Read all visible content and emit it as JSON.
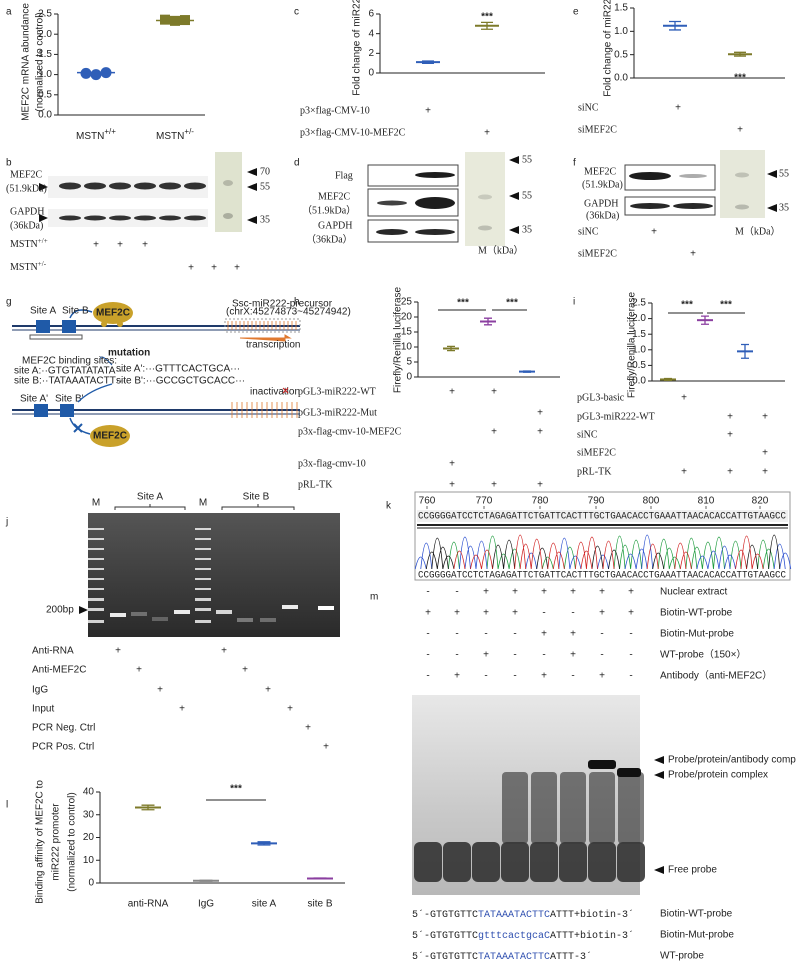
{
  "panel_letters": [
    "a",
    "b",
    "c",
    "d",
    "e",
    "f",
    "g",
    "h",
    "i",
    "j",
    "k",
    "l",
    "m"
  ],
  "chart_data": [
    {
      "type": "dot",
      "y_label": [
        "MEF2C mRNA abundance",
        "(normalized to control)"
      ],
      "categories": [
        "MSTN",
        "MSTN"
      ],
      "category_superscripts": [
        "+/+",
        "+/-"
      ],
      "markers": [
        "circle",
        "square"
      ],
      "colors": [
        "#2f5eb8",
        "#7d7a2a"
      ],
      "points": [
        [
          1.03,
          1.0,
          1.05
        ],
        [
          2.36,
          2.33,
          2.35
        ]
      ],
      "means": [
        1.05,
        2.34
      ],
      "ylim": [
        0,
        2.5
      ],
      "yticks": [
        {
          "value": 0,
          "label": "0.0"
        },
        0.5,
        {
          "value": 1,
          "label": "1.0"
        },
        1.5,
        {
          "value": 2,
          "label": "2.0"
        },
        2.5
      ]
    },
    {
      "type": "errorbar",
      "y_label": [
        "Fold change of miR222"
      ],
      "colors": [
        "#2f5eb8",
        "#7d7a2a"
      ],
      "values": [
        1.1,
        4.8
      ],
      "errors": [
        0.12,
        0.35
      ],
      "ylim": [
        0,
        6
      ],
      "yticks": [
        0,
        2,
        4,
        6
      ],
      "annotations": [
        "***"
      ],
      "conditions": [
        {
          "label": "p3×flag-CMV-10",
          "marks": [
            "+",
            null
          ]
        },
        {
          "label": "p3×flag-CMV-10-MEF2C",
          "marks": [
            null,
            "+"
          ]
        }
      ]
    },
    {
      "type": "errorbar",
      "y_label": [
        "Fold change of miR222"
      ],
      "colors": [
        "#2f5eb8",
        "#7d7a2a"
      ],
      "values": [
        1.12,
        0.51
      ],
      "errors": [
        0.09,
        0.04
      ],
      "ylim": [
        0,
        1.5
      ],
      "yticks": [
        {
          "value": 0,
          "label": "0.0"
        },
        0.5,
        {
          "value": 1,
          "label": "1.0"
        },
        1.5
      ],
      "annotations": [
        "***"
      ],
      "conditions": [
        {
          "label": "siNC",
          "marks": [
            "+",
            null
          ]
        },
        {
          "label": "siMEF2C",
          "marks": [
            null,
            "+"
          ]
        }
      ]
    },
    {
      "type": "errorbar",
      "y_label": [
        "Firefly/Renilla luciferase"
      ],
      "colors": [
        "#7d7a2a",
        "#8b3fa0",
        "#2f5eb8"
      ],
      "values": [
        9.5,
        18.5,
        1.8
      ],
      "errors": [
        0.7,
        1.1,
        0.2
      ],
      "ylim": [
        0,
        25
      ],
      "yticks": [
        0,
        5,
        10,
        15,
        20,
        25
      ],
      "annotations": [
        "***",
        "***"
      ],
      "conditions": [
        {
          "label": "pGL3-miR222-WT",
          "marks": [
            "+",
            "+",
            null
          ]
        },
        {
          "label": "pGL3-miR222-Mut",
          "marks": [
            null,
            null,
            "+"
          ]
        },
        {
          "label": "p3x-flag-cmv-10-MEF2C",
          "marks": [
            null,
            "+",
            "+"
          ]
        },
        {
          "label": "p3x-flag-cmv-10",
          "marks": [
            "+",
            null,
            null
          ]
        },
        {
          "label": "pRL-TK",
          "marks": [
            "+",
            "+",
            "+"
          ]
        }
      ]
    },
    {
      "type": "errorbar",
      "y_label": [
        "Firefly/Renilla luciferase"
      ],
      "colors": [
        "#7d7a2a",
        "#8b3fa0",
        "#2f5eb8"
      ],
      "values": [
        0.05,
        1.95,
        0.95
      ],
      "errors": [
        0.03,
        0.13,
        0.22
      ],
      "ylim": [
        0,
        2.5
      ],
      "yticks": [
        {
          "value": 0,
          "label": "0.0"
        },
        0.5,
        {
          "value": 1,
          "label": "1.0"
        },
        1.5,
        {
          "value": 2,
          "label": "2.0"
        },
        2.5
      ],
      "annotations": [
        "***",
        "***"
      ],
      "conditions": [
        {
          "label": "pGL3-basic",
          "marks": [
            "+",
            null,
            null
          ]
        },
        {
          "label": "pGL3-miR222-WT",
          "marks": [
            null,
            "+",
            "+"
          ]
        },
        {
          "label": "siNC",
          "marks": [
            null,
            "+",
            null
          ]
        },
        {
          "label": "siMEF2C",
          "marks": [
            null,
            null,
            "+"
          ]
        },
        {
          "label": "pRL-TK",
          "marks": [
            "+",
            "+",
            "+"
          ]
        }
      ]
    },
    {
      "type": "errorbar",
      "y_label": [
        "Binding affinity of MEF2C to",
        "miR222 promoter",
        "(normalized to control)"
      ],
      "categories": [
        "anti-RNA",
        "IgG",
        "site A",
        "site B"
      ],
      "colors": [
        "#7d7a2a",
        "#888888",
        "#2f5eb8",
        "#8b3fa0"
      ],
      "values": [
        33.2,
        1.0,
        17.4,
        2.0
      ],
      "errors": [
        1.0,
        0.2,
        0.7,
        0.2
      ],
      "ylim": [
        0,
        40
      ],
      "yticks": [
        0,
        10,
        20,
        30,
        40
      ],
      "annotations": [
        "***"
      ]
    }
  ],
  "blot_b": {
    "rows": [
      {
        "name": "MEF2C",
        "size": "(51.9kDa)"
      },
      {
        "name": "GAPDH",
        "size": "(36kDa)"
      }
    ],
    "markers": [
      70,
      55,
      35
    ],
    "conditions": [
      {
        "label": "MSTN",
        "sup": "+/+",
        "marks": [
          "+",
          "+",
          "+"
        ]
      },
      {
        "label": "MSTN",
        "sup": "+/-",
        "marks": [
          "+",
          "+",
          "+"
        ]
      }
    ]
  },
  "blot_d": {
    "rows": [
      {
        "name": "Flag"
      },
      {
        "name": "MEF2C",
        "size": "（51.9kDa）"
      },
      {
        "name": "GAPDH",
        "size": "（36kDa）"
      }
    ],
    "markers": [
      55,
      55,
      35
    ],
    "marker_unit": "M（kDa）"
  },
  "blot_f": {
    "rows": [
      {
        "name": "MEF2C",
        "size": "(51.9kDa)"
      },
      {
        "name": "GAPDH",
        "size": "(36kDa)"
      }
    ],
    "markers": [
      55,
      35
    ],
    "marker_unit": "M（kDa）",
    "conditions": [
      {
        "label": "siNC",
        "marks": [
          "+",
          null
        ]
      },
      {
        "label": "siMEF2C",
        "marks": [
          null,
          "+"
        ]
      }
    ]
  },
  "diagram_g": {
    "protein": "MEF2C",
    "site_a": "Site A",
    "site_b": "Site B",
    "precursor": "Ssc-miR222-precursor",
    "coords": "(chrX:45274873~45274942)",
    "transcription": "transcription",
    "mutation": "mutation",
    "binding_title": "MEF2C binding sites:",
    "site_a_seq": "site A:··GTGTATATATA···",
    "site_b_seq": "site B:··TATAAATACTT···",
    "site_a_mut": "site A':···GTTTCACTGCA···",
    "site_b_mut": "site B':···GCCGCTGCACC···",
    "inactivation": "inactivation",
    "site_a_prime": "Site A'",
    "site_b_prime": "Site B'",
    "protein_2": "MEF2C"
  },
  "gel_j": {
    "marker": "M",
    "site_a": "Site A",
    "marker_2": "M",
    "site_b": "Site B",
    "size": "200bp",
    "conditions": [
      {
        "label": "Anti-RNA",
        "marks": [
          "+",
          null,
          null,
          null,
          "+",
          null,
          null,
          null,
          null,
          null
        ]
      },
      {
        "label": "Anti-MEF2C",
        "marks": [
          null,
          "+",
          null,
          null,
          null,
          "+",
          null,
          null,
          null,
          null
        ]
      },
      {
        "label": "IgG",
        "marks": [
          null,
          null,
          "+",
          null,
          null,
          null,
          "+",
          null,
          null,
          null
        ]
      },
      {
        "label": "Input",
        "marks": [
          null,
          null,
          null,
          "+",
          null,
          null,
          null,
          "+",
          null,
          null
        ]
      },
      {
        "label": "PCR Neg. Ctrl",
        "marks": [
          null,
          null,
          null,
          null,
          null,
          null,
          null,
          null,
          "+",
          null
        ]
      },
      {
        "label": "PCR Pos. Ctrl",
        "marks": [
          null,
          null,
          null,
          null,
          null,
          null,
          null,
          null,
          null,
          "+"
        ]
      }
    ]
  },
  "sequencing_k": {
    "positions": [
      760,
      770,
      780,
      790,
      800,
      810,
      820
    ],
    "reference": "CCGGGGATCCTCTAGAGATTCTGATTCACTTTGCTGAACACCTGAAATTAACACACCATTGTAAGCC",
    "called": "CCGGGGATCCTCTAGAGATTCTGATTCACTTTGCTGAACACCTGAAATTAACACACCATTGTAAGCC"
  },
  "emsa_m": {
    "conditions": [
      {
        "label": "Nuclear extract",
        "marks": [
          "-",
          "-",
          "+",
          "+",
          "+",
          "+",
          "+",
          "+"
        ]
      },
      {
        "label": "Biotin-WT-probe",
        "marks": [
          "+",
          "+",
          "+",
          "+",
          "-",
          "-",
          "+",
          "+"
        ]
      },
      {
        "label": "Biotin-Mut-probe",
        "marks": [
          "-",
          "-",
          "-",
          "-",
          "+",
          "+",
          "-",
          "-"
        ]
      },
      {
        "label": "WT-probe（150×）",
        "marks": [
          "-",
          "-",
          "+",
          "-",
          "-",
          "+",
          "-",
          "-"
        ]
      },
      {
        "label": "Antibody（anti-MEF2C）",
        "marks": [
          "-",
          "+",
          "-",
          "-",
          "+",
          "-",
          "+",
          "-"
        ]
      }
    ],
    "bands": [
      "Probe/protein/antibody complex",
      "Probe/protein complex",
      "Free probe"
    ],
    "probes": [
      {
        "name": "Biotin-WT-probe",
        "sequence": [
          "5´-GTGTGTTC",
          "TATAAATACTTC",
          "ATTT+biotin-3´"
        ]
      },
      {
        "name": "Biotin-Mut-probe",
        "sequence": [
          "5´-GTGTGTTC",
          "gtttcactgcaC",
          "ATTT+biotin-3´"
        ]
      },
      {
        "name": "WT-probe",
        "sequence": [
          "5´-GTGTGTTC",
          "TATAAATACTTC",
          "ATTT-3´"
        ]
      }
    ]
  }
}
